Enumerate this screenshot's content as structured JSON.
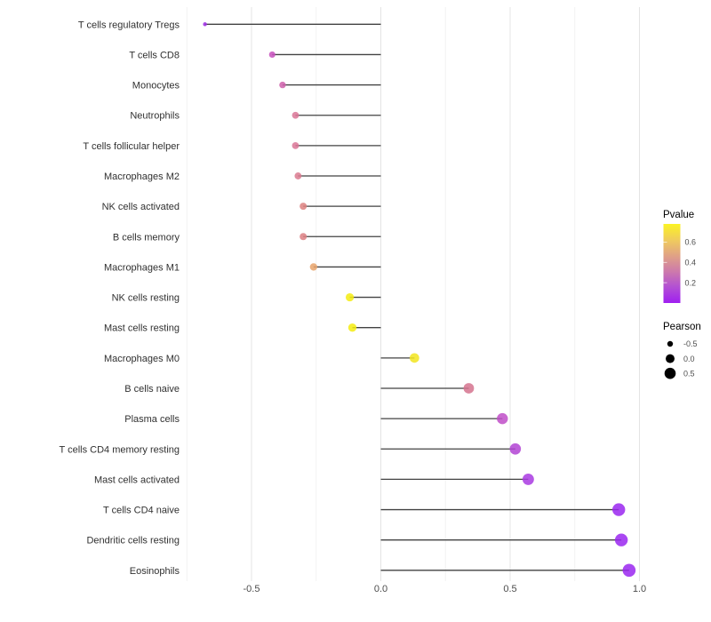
{
  "chart_data": {
    "type": "bar",
    "variant": "horizontal-lollipop",
    "title": "",
    "xlabel": "",
    "ylabel": "",
    "x_tick_labels": [
      "-0.5",
      "0.0",
      "0.5",
      "1.0"
    ],
    "x_tick_values": [
      -0.5,
      0.0,
      0.5,
      1.0
    ],
    "x_minor_grid_values": [
      -0.75,
      -0.25,
      0.25,
      0.75
    ],
    "xlim": [
      -0.76,
      1.05
    ],
    "grid": "vertical major and minor gridlines, no axis lines",
    "legend_position": "right",
    "size_encoding": "Pearson",
    "color_encoding": "Pvalue",
    "categories": [
      "T cells regulatory  Tregs",
      "T cells CD8",
      "Monocytes",
      "Neutrophils",
      "T cells follicular helper",
      "Macrophages M2",
      "NK cells activated",
      "B cells memory",
      "Macrophages M1",
      "NK cells resting",
      "Mast cells resting",
      "Macrophages M0",
      "B cells naive",
      "Plasma cells",
      "T cells CD4 memory resting",
      "Mast cells activated",
      "T cells CD4 naive",
      "Dendritic cells resting",
      "Eosinophils"
    ],
    "series": [
      {
        "name": "Pearson correlation",
        "values": [
          -0.68,
          -0.42,
          -0.38,
          -0.33,
          -0.33,
          -0.32,
          -0.3,
          -0.3,
          -0.26,
          -0.12,
          -0.11,
          0.13,
          0.34,
          0.47,
          0.52,
          0.57,
          0.92,
          0.93,
          0.96
        ]
      }
    ],
    "point_colors": [
      "#9e2be4",
      "#c750bd",
      "#cf60ab",
      "#da7696",
      "#da7696",
      "#db7a8f",
      "#dd8180",
      "#dc7f82",
      "#e7a36b",
      "#f5ec11",
      "#f5ec11",
      "#f2e51e",
      "#d5738e",
      "#bf4ec8",
      "#b243d3",
      "#a93ae2",
      "#9a27f0",
      "#9a27f0",
      "#9a27f0"
    ]
  },
  "legend": {
    "pvalue": {
      "title": "Pvalue",
      "tick_labels": [
        "0.6",
        "0.4",
        "0.2"
      ],
      "tick_values": [
        0.6,
        0.4,
        0.2
      ],
      "bar_range": [
        0.0,
        0.78
      ],
      "gradient_top_to_bottom": [
        "#fbf324",
        "#f0cc5c",
        "#e0a285",
        "#cd7aab",
        "#b24fd4",
        "#a01ff0"
      ]
    },
    "pearson": {
      "title": "Pearson",
      "items": [
        {
          "label": "-0.5",
          "value": -0.5
        },
        {
          "label": "0.0",
          "value": 0.0
        },
        {
          "label": "0.5",
          "value": 0.5
        }
      ]
    }
  },
  "colors": {
    "background": "#ffffff",
    "stem": "#424242",
    "grid_major": "#e4e4e4",
    "grid_minor": "#f2f2f2",
    "category_text": "#303030",
    "axis_tick_text": "#4d4d4d",
    "legend_title_text": "#000000",
    "legend_dot": "#000000"
  }
}
